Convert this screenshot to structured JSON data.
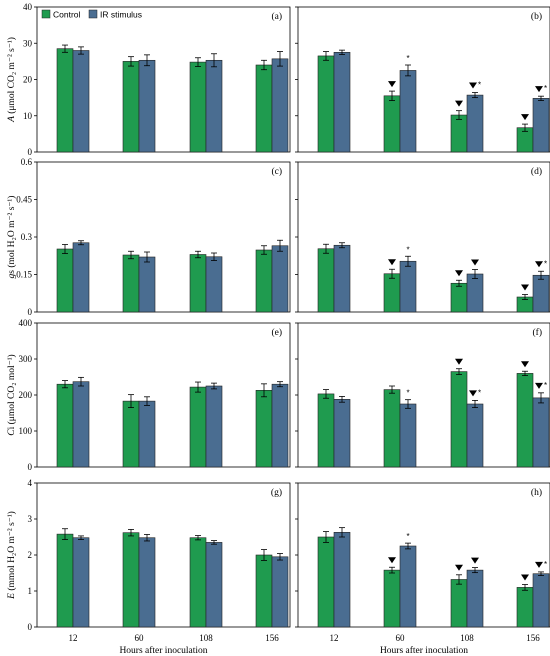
{
  "chart_data": {
    "type": "bar",
    "xlabel": "Hours after inoculation",
    "categories": [
      "12",
      "60",
      "108",
      "156"
    ],
    "legend": [
      "Control",
      "IR stimulus"
    ],
    "legend_placement": "top-left",
    "colors": {
      "control": "#1f9b4f",
      "ir": "#4a6d91"
    },
    "rows": [
      {
        "ylabel": {
          "pre": "",
          "it": "A",
          "post": " (μmol CO₂ m⁻² s⁻¹)"
        },
        "ylim": [
          0,
          40
        ],
        "yticks": [
          "0",
          "10",
          "20",
          "30",
          "40"
        ],
        "panels": [
          {
            "label": "(a)",
            "control": [
              28.5,
              25.0,
              24.8,
              24.0
            ],
            "control_err": [
              1.0,
              1.3,
              1.2,
              1.3
            ],
            "ir": [
              28.0,
              25.3,
              25.3,
              25.7
            ],
            "ir_err": [
              1.0,
              1.5,
              1.8,
              2.0
            ],
            "control_tri": [
              false,
              false,
              false,
              false
            ],
            "ir_tri": [
              false,
              false,
              false,
              false
            ],
            "ir_star": [
              false,
              false,
              false,
              false
            ]
          },
          {
            "label": "(b)",
            "control": [
              26.5,
              15.5,
              10.2,
              6.7
            ],
            "control_err": [
              1.2,
              1.3,
              1.2,
              1.0
            ],
            "ir": [
              27.5,
              22.5,
              15.7,
              14.8
            ],
            "ir_err": [
              0.6,
              1.5,
              0.7,
              0.6
            ],
            "control_tri": [
              false,
              true,
              true,
              true
            ],
            "ir_tri": [
              false,
              false,
              true,
              true
            ],
            "ir_star": [
              false,
              true,
              true,
              true
            ]
          }
        ]
      },
      {
        "ylabel": {
          "pre": "",
          "it": "g",
          "post": "s (mol H₂O m⁻² s⁻¹)"
        },
        "ylim": [
          0,
          0.6
        ],
        "yticks": [
          "0",
          "0.15",
          "0.3",
          "0.45",
          "0.6"
        ],
        "panels": [
          {
            "label": "(c)",
            "control": [
              0.252,
              0.228,
              0.23,
              0.248
            ],
            "control_err": [
              0.018,
              0.015,
              0.013,
              0.017
            ],
            "ir": [
              0.277,
              0.22,
              0.221,
              0.265
            ],
            "ir_err": [
              0.008,
              0.02,
              0.015,
              0.022
            ],
            "control_tri": [
              false,
              false,
              false,
              false
            ],
            "ir_tri": [
              false,
              false,
              false,
              false
            ],
            "ir_star": [
              false,
              false,
              false,
              false
            ]
          },
          {
            "label": "(d)",
            "control": [
              0.253,
              0.153,
              0.115,
              0.06
            ],
            "control_err": [
              0.018,
              0.018,
              0.012,
              0.01
            ],
            "ir": [
              0.267,
              0.203,
              0.152,
              0.147
            ],
            "ir_err": [
              0.01,
              0.02,
              0.018,
              0.016
            ],
            "control_tri": [
              false,
              true,
              true,
              true
            ],
            "ir_tri": [
              false,
              false,
              true,
              true
            ],
            "ir_star": [
              false,
              true,
              false,
              true
            ]
          }
        ]
      },
      {
        "ylabel": {
          "pre": "",
          "it": "C",
          "post": "i (μmol CO₂ mol⁻¹)"
        },
        "ylim": [
          0,
          400
        ],
        "yticks": [
          "0",
          "100",
          "200",
          "300",
          "400"
        ],
        "panels": [
          {
            "label": "(e)",
            "control": [
              230,
              183,
              222,
              213
            ],
            "control_err": [
              10,
              18,
              14,
              18
            ],
            "ir": [
              237,
              183,
              225,
              230
            ],
            "ir_err": [
              12,
              12,
              8,
              7
            ],
            "control_tri": [
              false,
              false,
              false,
              false
            ],
            "ir_tri": [
              false,
              false,
              false,
              false
            ],
            "ir_star": [
              false,
              false,
              false,
              false
            ]
          },
          {
            "label": "(f)",
            "control": [
              203,
              215,
              265,
              260
            ],
            "control_err": [
              12,
              10,
              8,
              6
            ],
            "ir": [
              188,
              175,
              175,
              192
            ],
            "ir_err": [
              8,
              12,
              10,
              14
            ],
            "control_tri": [
              false,
              false,
              true,
              true
            ],
            "ir_tri": [
              false,
              false,
              true,
              true
            ],
            "ir_star": [
              false,
              true,
              true,
              true
            ]
          }
        ]
      },
      {
        "ylabel": {
          "pre": "",
          "it": "E",
          "post": " (mmol H₂O m⁻² s⁻¹)"
        },
        "ylim": [
          0,
          4
        ],
        "yticks": [
          "0",
          "1",
          "2",
          "3",
          "4"
        ],
        "panels": [
          {
            "label": "(g)",
            "control": [
              2.58,
              2.62,
              2.48,
              2.0
            ],
            "control_err": [
              0.15,
              0.09,
              0.06,
              0.15
            ],
            "ir": [
              2.48,
              2.48,
              2.35,
              1.95
            ],
            "ir_err": [
              0.05,
              0.09,
              0.05,
              0.09
            ],
            "control_tri": [
              false,
              false,
              false,
              false
            ],
            "ir_tri": [
              false,
              false,
              false,
              false
            ],
            "ir_star": [
              false,
              false,
              false,
              false
            ]
          },
          {
            "label": "(h)",
            "control": [
              2.5,
              1.58,
              1.32,
              1.1
            ],
            "control_err": [
              0.15,
              0.08,
              0.13,
              0.08
            ],
            "ir": [
              2.63,
              2.25,
              1.58,
              1.48
            ],
            "ir_err": [
              0.13,
              0.08,
              0.07,
              0.05
            ],
            "control_tri": [
              false,
              true,
              true,
              true
            ],
            "ir_tri": [
              false,
              false,
              true,
              true
            ],
            "ir_star": [
              false,
              true,
              false,
              true
            ]
          }
        ]
      }
    ]
  }
}
